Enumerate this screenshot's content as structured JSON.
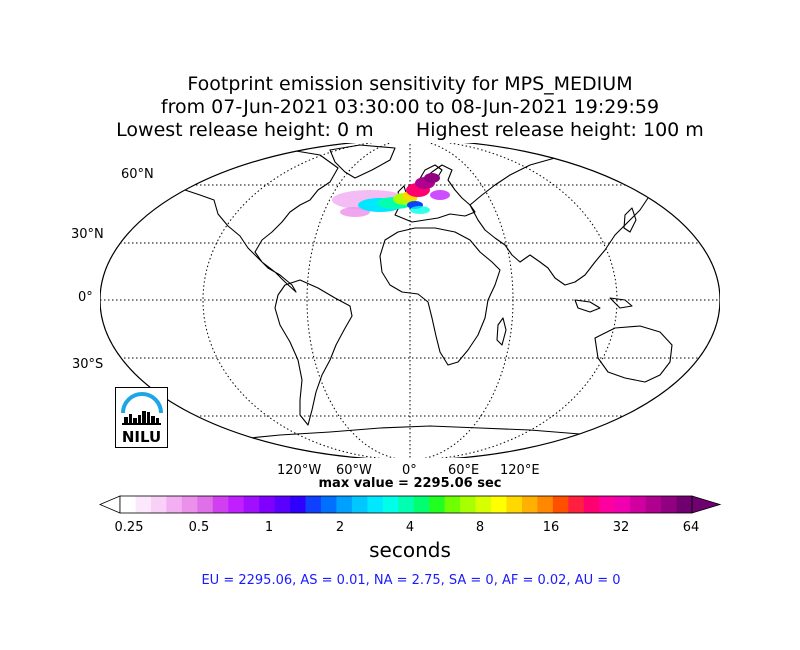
{
  "title": {
    "line1": "Footprint emission sensitivity for MPS_MEDIUM",
    "line2": "from 07-Jun-2021 03:30:00 to 08-Jun-2021 19:29:59",
    "line3_left": "Lowest release height: 0 m",
    "line3_right": "Highest release height: 100 m"
  },
  "latitude_labels": [
    "60°N",
    "30°N",
    "0°",
    "30°S"
  ],
  "longitude_labels": [
    "120°W",
    "60°W",
    "0°",
    "60°E",
    "120°E"
  ],
  "max_value_text": "max value = 2295.06 sec",
  "colorbar": {
    "tick_labels": [
      "0.25",
      "0.5",
      "1",
      "2",
      "4",
      "8",
      "16",
      "32",
      "64"
    ],
    "units": "seconds",
    "colors": [
      "#ffffff",
      "#fce8fc",
      "#f8d0f8",
      "#f2b0f2",
      "#eb90eb",
      "#e070e8",
      "#d040f0",
      "#c020ff",
      "#a010ff",
      "#8000ff",
      "#5a00ff",
      "#3000ff",
      "#1040ff",
      "#0070ff",
      "#00a0ff",
      "#00c8ff",
      "#00e8ff",
      "#00ffe8",
      "#00ffb0",
      "#00ff70",
      "#20ff20",
      "#70ff00",
      "#a8ff00",
      "#d8ff00",
      "#ffff00",
      "#ffd800",
      "#ffb000",
      "#ff8800",
      "#ff5000",
      "#ff2040",
      "#ff0070",
      "#ff00a0",
      "#f000b0",
      "#d000a0",
      "#b00090",
      "#900080",
      "#700070"
    ]
  },
  "regions_text": "EU = 2295.06,  AS = 0.01,  NA = 2.75,  SA = 0,  AF = 0.02,  AU = 0",
  "logo": {
    "text": "NILU",
    "arc_color": "#1ea5e6"
  }
}
